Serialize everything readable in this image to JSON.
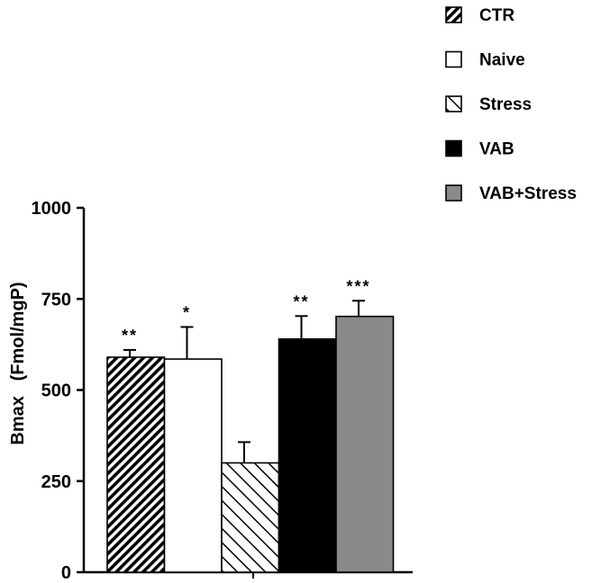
{
  "chart_data": {
    "type": "bar",
    "categories": [
      "CTR",
      "Naive",
      "Stress",
      "VAB",
      "VAB+Stress"
    ],
    "values": [
      590,
      585,
      300,
      640,
      702
    ],
    "errors": [
      20,
      88,
      57,
      63,
      43
    ],
    "significance": [
      "**",
      "*",
      "",
      "**",
      "***"
    ],
    "title": "",
    "xlabel": "",
    "ylabel": "Bmax   (Fmol/mgP)",
    "ylim": [
      0,
      1000
    ],
    "yticks": [
      0,
      250,
      500,
      750,
      1000
    ],
    "ytick_labels": [
      "0",
      "250",
      "500",
      "750",
      "1000"
    ],
    "legend_position": "top-right",
    "grid": false,
    "series_fills": [
      "dense-diagonal-hatch",
      "white",
      "sparse-diagonal-hatch",
      "black",
      "gray"
    ],
    "colors": {
      "gray_fill": "#8a8a8a",
      "black_fill": "#000000"
    }
  }
}
